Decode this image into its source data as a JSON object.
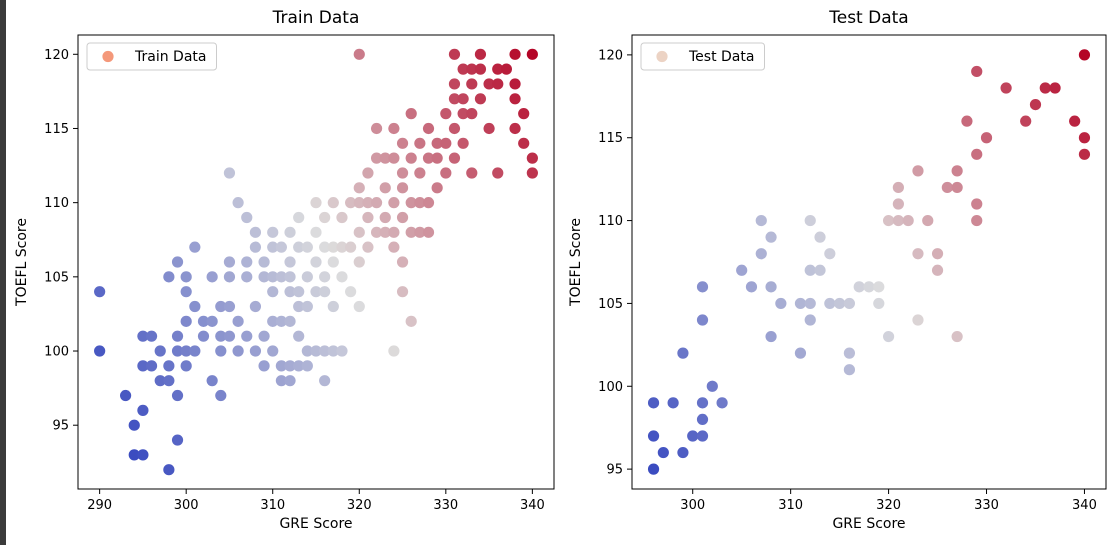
{
  "chart_data": [
    {
      "type": "scatter",
      "title": "Train Data",
      "xlabel": "GRE Score",
      "ylabel": "TOEFL Score",
      "xlim": [
        287.5,
        342.5
      ],
      "ylim": [
        90.7,
        121.3
      ],
      "xticks": [
        290,
        300,
        310,
        320,
        330,
        340
      ],
      "yticks": [
        95,
        100,
        105,
        110,
        115,
        120
      ],
      "grid": false,
      "legend": {
        "position": "top-left",
        "entries": [
          {
            "label": "Train Data",
            "color": "#f4987a"
          }
        ]
      },
      "colormap": "coolwarm",
      "series": [
        {
          "name": "Train Data",
          "points": [
            [
              290,
              104
            ],
            [
              290,
              100
            ],
            [
              293,
              97
            ],
            [
              294,
              95
            ],
            [
              294,
              93
            ],
            [
              295,
              93
            ],
            [
              295,
              96
            ],
            [
              295,
              99
            ],
            [
              295,
              101
            ],
            [
              296,
              99
            ],
            [
              296,
              101
            ],
            [
              297,
              98
            ],
            [
              297,
              100
            ],
            [
              298,
              92
            ],
            [
              298,
              98
            ],
            [
              298,
              99
            ],
            [
              299,
              97
            ],
            [
              299,
              94
            ],
            [
              299,
              100
            ],
            [
              299,
              101
            ],
            [
              300,
              100
            ],
            [
              300,
              102
            ],
            [
              300,
              104
            ],
            [
              300,
              99
            ],
            [
              298,
              105
            ],
            [
              299,
              106
            ],
            [
              300,
              105
            ],
            [
              301,
              107
            ],
            [
              301,
              100
            ],
            [
              301,
              103
            ],
            [
              302,
              101
            ],
            [
              302,
              102
            ],
            [
              303,
              98
            ],
            [
              303,
              102
            ],
            [
              303,
              105
            ],
            [
              304,
              97
            ],
            [
              304,
              101
            ],
            [
              304,
              103
            ],
            [
              304,
              100
            ],
            [
              305,
              101
            ],
            [
              305,
              105
            ],
            [
              305,
              106
            ],
            [
              305,
              112
            ],
            [
              305,
              103
            ],
            [
              306,
              100
            ],
            [
              306,
              102
            ],
            [
              306,
              110
            ],
            [
              307,
              109
            ],
            [
              307,
              106
            ],
            [
              307,
              105
            ],
            [
              307,
              101
            ],
            [
              308,
              100
            ],
            [
              308,
              103
            ],
            [
              308,
              107
            ],
            [
              308,
              108
            ],
            [
              309,
              99
            ],
            [
              309,
              101
            ],
            [
              309,
              105
            ],
            [
              309,
              106
            ],
            [
              310,
              100
            ],
            [
              310,
              102
            ],
            [
              310,
              104
            ],
            [
              310,
              105
            ],
            [
              310,
              107
            ],
            [
              310,
              108
            ],
            [
              311,
              98
            ],
            [
              311,
              99
            ],
            [
              311,
              102
            ],
            [
              311,
              105
            ],
            [
              311,
              107
            ],
            [
              312,
              98
            ],
            [
              312,
              99
            ],
            [
              312,
              102
            ],
            [
              312,
              104
            ],
            [
              312,
              105
            ],
            [
              312,
              106
            ],
            [
              312,
              108
            ],
            [
              313,
              99
            ],
            [
              313,
              101
            ],
            [
              313,
              103
            ],
            [
              313,
              104
            ],
            [
              313,
              107
            ],
            [
              313,
              109
            ],
            [
              314,
              99
            ],
            [
              314,
              100
            ],
            [
              314,
              103
            ],
            [
              314,
              105
            ],
            [
              314,
              107
            ],
            [
              315,
              100
            ],
            [
              315,
              104
            ],
            [
              315,
              106
            ],
            [
              315,
              108
            ],
            [
              315,
              110
            ],
            [
              316,
              98
            ],
            [
              316,
              100
            ],
            [
              316,
              104
            ],
            [
              316,
              105
            ],
            [
              316,
              107
            ],
            [
              316,
              109
            ],
            [
              317,
              100
            ],
            [
              317,
              103
            ],
            [
              317,
              106
            ],
            [
              317,
              107
            ],
            [
              317,
              110
            ],
            [
              318,
              100
            ],
            [
              318,
              105
            ],
            [
              318,
              107
            ],
            [
              318,
              109
            ],
            [
              319,
              104
            ],
            [
              319,
              107
            ],
            [
              319,
              110
            ],
            [
              320,
              103
            ],
            [
              320,
              106
            ],
            [
              320,
              108
            ],
            [
              320,
              110
            ],
            [
              320,
              111
            ],
            [
              320,
              120
            ],
            [
              321,
              107
            ],
            [
              321,
              109
            ],
            [
              321,
              110
            ],
            [
              321,
              112
            ],
            [
              322,
              108
            ],
            [
              322,
              110
            ],
            [
              322,
              113
            ],
            [
              322,
              115
            ],
            [
              323,
              108
            ],
            [
              323,
              109
            ],
            [
              323,
              111
            ],
            [
              323,
              113
            ],
            [
              324,
              100
            ],
            [
              324,
              107
            ],
            [
              324,
              108
            ],
            [
              324,
              110
            ],
            [
              324,
              113
            ],
            [
              324,
              115
            ],
            [
              325,
              104
            ],
            [
              325,
              106
            ],
            [
              325,
              109
            ],
            [
              325,
              111
            ],
            [
              325,
              112
            ],
            [
              325,
              114
            ],
            [
              326,
              102
            ],
            [
              326,
              108
            ],
            [
              326,
              110
            ],
            [
              326,
              113
            ],
            [
              326,
              116
            ],
            [
              327,
              108
            ],
            [
              327,
              110
            ],
            [
              327,
              112
            ],
            [
              327,
              114
            ],
            [
              328,
              108
            ],
            [
              328,
              110
            ],
            [
              328,
              113
            ],
            [
              328,
              115
            ],
            [
              329,
              111
            ],
            [
              329,
              113
            ],
            [
              329,
              114
            ],
            [
              330,
              112
            ],
            [
              330,
              114
            ],
            [
              330,
              116
            ],
            [
              331,
              113
            ],
            [
              331,
              115
            ],
            [
              331,
              117
            ],
            [
              331,
              118
            ],
            [
              331,
              120
            ],
            [
              332,
              114
            ],
            [
              332,
              116
            ],
            [
              332,
              117
            ],
            [
              332,
              119
            ],
            [
              333,
              112
            ],
            [
              333,
              116
            ],
            [
              333,
              118
            ],
            [
              333,
              119
            ],
            [
              334,
              117
            ],
            [
              334,
              119
            ],
            [
              334,
              120
            ],
            [
              335,
              115
            ],
            [
              335,
              118
            ],
            [
              336,
              112
            ],
            [
              336,
              118
            ],
            [
              336,
              119
            ],
            [
              337,
              119
            ],
            [
              338,
              115
            ],
            [
              338,
              117
            ],
            [
              338,
              118
            ],
            [
              338,
              120
            ],
            [
              339,
              114
            ],
            [
              339,
              116
            ],
            [
              340,
              112
            ],
            [
              340,
              113
            ],
            [
              340,
              120
            ]
          ]
        }
      ]
    },
    {
      "type": "scatter",
      "title": "Test Data",
      "xlabel": "GRE Score",
      "ylabel": "TOEFL Score",
      "xlim": [
        293.8,
        342.2
      ],
      "ylim": [
        93.8,
        121.2
      ],
      "xticks": [
        300,
        310,
        320,
        330,
        340
      ],
      "yticks": [
        95,
        100,
        105,
        110,
        115,
        120
      ],
      "grid": false,
      "legend": {
        "position": "top-left",
        "entries": [
          {
            "label": "Test Data",
            "color": "#ecd3c4"
          }
        ]
      },
      "colormap": "coolwarm",
      "series": [
        {
          "name": "Test Data",
          "points": [
            [
              296,
              95
            ],
            [
              296,
              97
            ],
            [
              296,
              99
            ],
            [
              297,
              96
            ],
            [
              298,
              99
            ],
            [
              299,
              96
            ],
            [
              299,
              102
            ],
            [
              300,
              97
            ],
            [
              301,
              97
            ],
            [
              301,
              98
            ],
            [
              301,
              99
            ],
            [
              301,
              104
            ],
            [
              301,
              106
            ],
            [
              302,
              100
            ],
            [
              303,
              99
            ],
            [
              305,
              107
            ],
            [
              306,
              106
            ],
            [
              307,
              108
            ],
            [
              307,
              110
            ],
            [
              308,
              103
            ],
            [
              308,
              106
            ],
            [
              308,
              109
            ],
            [
              309,
              105
            ],
            [
              311,
              102
            ],
            [
              311,
              105
            ],
            [
              312,
              104
            ],
            [
              312,
              105
            ],
            [
              312,
              107
            ],
            [
              312,
              110
            ],
            [
              313,
              107
            ],
            [
              313,
              109
            ],
            [
              314,
              105
            ],
            [
              314,
              108
            ],
            [
              315,
              105
            ],
            [
              316,
              101
            ],
            [
              316,
              102
            ],
            [
              316,
              105
            ],
            [
              317,
              106
            ],
            [
              318,
              106
            ],
            [
              319,
              105
            ],
            [
              319,
              106
            ],
            [
              320,
              103
            ],
            [
              320,
              110
            ],
            [
              321,
              110
            ],
            [
              321,
              111
            ],
            [
              321,
              112
            ],
            [
              322,
              110
            ],
            [
              323,
              104
            ],
            [
              323,
              108
            ],
            [
              323,
              113
            ],
            [
              324,
              110
            ],
            [
              325,
              107
            ],
            [
              325,
              108
            ],
            [
              326,
              112
            ],
            [
              327,
              103
            ],
            [
              327,
              112
            ],
            [
              327,
              113
            ],
            [
              328,
              116
            ],
            [
              329,
              110
            ],
            [
              329,
              111
            ],
            [
              329,
              114
            ],
            [
              329,
              119
            ],
            [
              330,
              115
            ],
            [
              332,
              118
            ],
            [
              334,
              116
            ],
            [
              335,
              117
            ],
            [
              336,
              118
            ],
            [
              337,
              118
            ],
            [
              339,
              116
            ],
            [
              340,
              114
            ],
            [
              340,
              115
            ],
            [
              340,
              120
            ]
          ]
        }
      ]
    }
  ]
}
